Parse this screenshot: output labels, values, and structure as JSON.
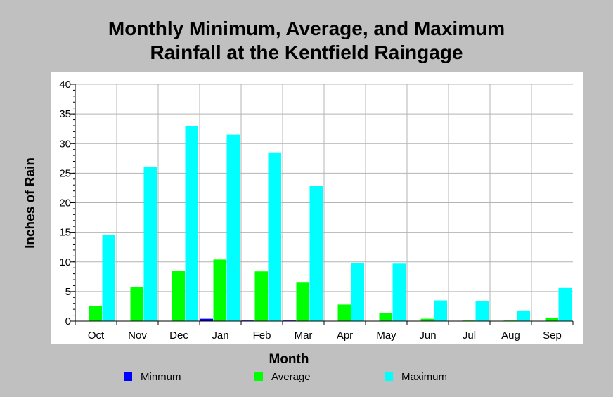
{
  "chart_data": {
    "type": "bar",
    "title_line1": "Monthly Minimum, Average, and Maximum",
    "title_line2": "Rainfall at the Kentfield Raingage",
    "xlabel": "Month",
    "ylabel": "Inches of Rain",
    "ylim": [
      0,
      40
    ],
    "yticks": [
      "0",
      "5",
      "10",
      "15",
      "20",
      "25",
      "30",
      "35",
      "40"
    ],
    "categories": [
      "Oct",
      "Nov",
      "Dec",
      "Jan",
      "Feb",
      "Mar",
      "Apr",
      "May",
      "Jun",
      "Jul",
      "Aug",
      "Sep"
    ],
    "series": [
      {
        "name": "Minmum",
        "color": "#0000ff",
        "values": [
          0,
          0,
          0,
          0.4,
          0.1,
          0.1,
          0,
          0,
          0,
          0,
          0,
          0
        ]
      },
      {
        "name": "Average",
        "color": "#00ff00",
        "values": [
          2.6,
          5.8,
          8.5,
          10.4,
          8.4,
          6.5,
          2.8,
          1.4,
          0.4,
          0.1,
          0.1,
          0.6
        ]
      },
      {
        "name": "Maximum",
        "color": "#00ffff",
        "values": [
          14.6,
          26.0,
          32.9,
          31.5,
          28.4,
          22.8,
          9.8,
          9.7,
          3.5,
          3.4,
          1.8,
          5.6
        ]
      }
    ],
    "grid": true,
    "legend": "bottom"
  }
}
